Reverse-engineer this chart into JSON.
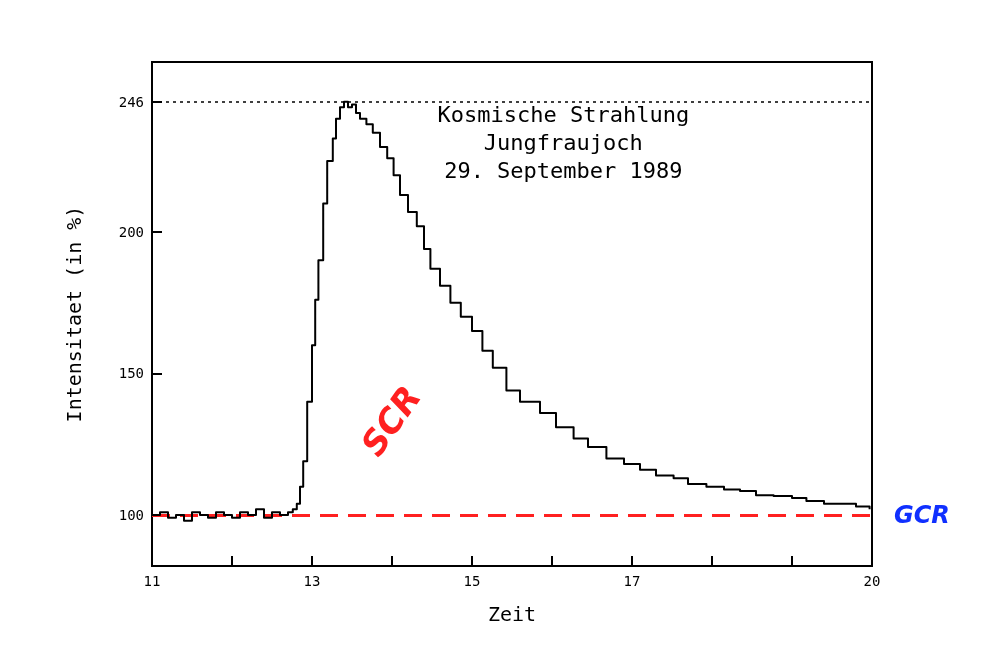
{
  "chart_data": {
    "type": "step",
    "title": "Kosmische Strahlung\nJungfraujoch\n29. September 1989",
    "xlabel": "Zeit",
    "ylabel": "Intensitaet (in %)",
    "series": [
      {
        "color": "#000000",
        "x": [
          11.0,
          11.1,
          11.2,
          11.3,
          11.4,
          11.5,
          11.6,
          11.7,
          11.8,
          11.9,
          12.0,
          12.1,
          12.2,
          12.3,
          12.4,
          12.5,
          12.6,
          12.7,
          12.76,
          12.81,
          12.85,
          12.89,
          12.94,
          13.0,
          13.04,
          13.08,
          13.14,
          13.19,
          13.26,
          13.3,
          13.35,
          13.4,
          13.45,
          13.5,
          13.55,
          13.6,
          13.68,
          13.76,
          13.85,
          13.94,
          14.02,
          14.1,
          14.2,
          14.31,
          14.4,
          14.48,
          14.6,
          14.73,
          14.86,
          15.0,
          15.13,
          15.26,
          15.43,
          15.6,
          15.85,
          16.05,
          16.27,
          16.45,
          16.68,
          16.9,
          17.1,
          17.3,
          17.52,
          17.7,
          17.93,
          18.15,
          18.35,
          18.55,
          18.77,
          19.0,
          19.18,
          19.4,
          19.6,
          19.8,
          19.97
        ],
        "values": [
          100,
          101,
          99,
          100,
          98,
          101,
          100,
          99,
          101,
          100,
          99,
          101,
          100,
          102,
          99,
          101,
          100,
          101,
          102,
          104,
          110,
          119,
          140,
          160,
          176,
          190,
          210,
          225,
          233,
          240,
          244,
          246,
          244,
          245,
          242,
          240,
          238,
          235,
          230,
          226,
          220,
          213,
          207,
          202,
          194,
          187,
          181,
          175,
          170,
          165,
          158,
          152,
          144,
          140,
          136,
          131,
          127,
          124,
          120,
          118,
          116,
          114,
          113,
          111,
          110,
          109,
          108.5,
          107,
          106.7,
          106,
          105,
          104,
          104,
          103,
          102
        ]
      }
    ],
    "xlim": [
      11,
      20
    ],
    "xticks": [
      11,
      {
        "value": 12,
        "label": null
      },
      13,
      {
        "value": 14,
        "label": null
      },
      15,
      {
        "value": 16,
        "label": null
      },
      17,
      {
        "value": 18,
        "label": null
      },
      {
        "value": 19,
        "label": null
      },
      20
    ],
    "ylim": [
      82,
      260
    ],
    "yticks": [
      100,
      150,
      200,
      246
    ],
    "ref_lines": [
      {
        "axis": "y",
        "value": 100,
        "label": "GCR",
        "color": "#ff2020",
        "line_style": "dashed"
      },
      {
        "axis": "y",
        "value": 246,
        "color": "#000000",
        "line_style": "dotted"
      }
    ],
    "annotations": [
      "SCR"
    ],
    "grid": false,
    "marker": "none"
  }
}
